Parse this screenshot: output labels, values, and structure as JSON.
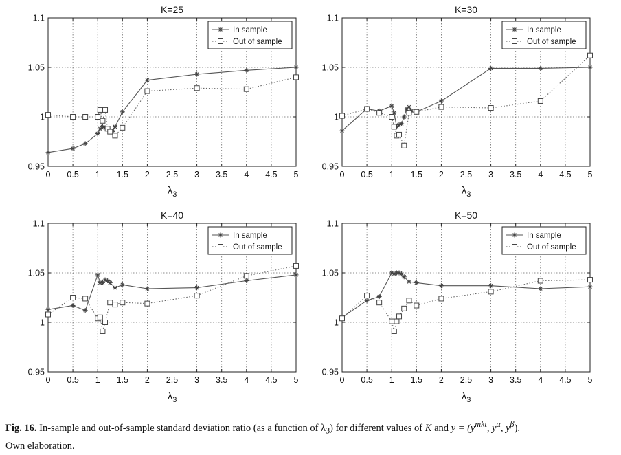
{
  "chart_data": [
    {
      "type": "line",
      "title": "K=25",
      "xlabel": "λ",
      "xlabel_sub": "3",
      "ylabel": "",
      "xlim": [
        0,
        5
      ],
      "ylim": [
        0.95,
        1.1
      ],
      "xticks": [
        "0",
        "0.5",
        "1",
        "1.5",
        "2",
        "2.5",
        "3",
        "3.5",
        "4",
        "4.5",
        "5"
      ],
      "yticks": [
        "0.95",
        "1",
        "1.05",
        "1.1"
      ],
      "grid": true,
      "legend": "top-right",
      "series": [
        {
          "name": "In sample",
          "marker": "star",
          "line": "solid",
          "x": [
            0,
            0.5,
            0.75,
            1.0,
            1.05,
            1.1,
            1.15,
            1.2,
            1.25,
            1.3,
            1.35,
            1.5,
            2,
            3,
            4,
            5
          ],
          "y": [
            0.964,
            0.968,
            0.973,
            0.983,
            0.988,
            0.99,
            0.989,
            0.988,
            0.986,
            0.985,
            0.99,
            1.005,
            1.037,
            1.043,
            1.047,
            1.05
          ]
        },
        {
          "name": "Out of sample",
          "marker": "square",
          "line": "dotted",
          "x": [
            0,
            0.5,
            0.75,
            1.0,
            1.05,
            1.1,
            1.15,
            1.2,
            1.25,
            1.35,
            1.5,
            2,
            3,
            4,
            5
          ],
          "y": [
            1.002,
            1.0,
            1.0,
            1.0,
            1.007,
            0.996,
            1.007,
            0.988,
            0.985,
            0.981,
            0.989,
            1.026,
            1.029,
            1.028,
            1.04
          ]
        }
      ]
    },
    {
      "type": "line",
      "title": "K=30",
      "xlabel": "λ",
      "xlabel_sub": "3",
      "ylabel": "",
      "xlim": [
        0,
        5
      ],
      "ylim": [
        0.95,
        1.1
      ],
      "xticks": [
        "0",
        "0.5",
        "1",
        "1.5",
        "2",
        "2.5",
        "3",
        "3.5",
        "4",
        "4.5",
        "5"
      ],
      "yticks": [
        "0.95",
        "1",
        "1.05",
        "1.1"
      ],
      "grid": true,
      "legend": "top-right",
      "series": [
        {
          "name": "In sample",
          "marker": "star",
          "line": "solid",
          "x": [
            0,
            0.5,
            0.75,
            1.0,
            1.05,
            1.1,
            1.15,
            1.2,
            1.25,
            1.3,
            1.35,
            1.4,
            1.5,
            2,
            3,
            4,
            5
          ],
          "y": [
            0.986,
            1.008,
            1.006,
            1.011,
            1.004,
            0.99,
            0.992,
            0.993,
            1.0,
            1.008,
            1.01,
            1.006,
            1.005,
            1.016,
            1.049,
            1.049,
            1.05
          ]
        },
        {
          "name": "Out of sample",
          "marker": "square",
          "line": "dotted",
          "x": [
            0,
            0.5,
            0.75,
            1.0,
            1.05,
            1.1,
            1.15,
            1.25,
            1.35,
            1.5,
            2,
            3,
            4,
            5
          ],
          "y": [
            1.001,
            1.008,
            1.004,
            1.0,
            0.99,
            0.981,
            0.982,
            0.971,
            1.004,
            1.005,
            1.01,
            1.009,
            1.016,
            1.062
          ]
        }
      ]
    },
    {
      "type": "line",
      "title": "K=40",
      "xlabel": "λ",
      "xlabel_sub": "3",
      "ylabel": "",
      "xlim": [
        0,
        5
      ],
      "ylim": [
        0.95,
        1.1
      ],
      "xticks": [
        "0",
        "0.5",
        "1",
        "1.5",
        "2",
        "2.5",
        "3",
        "3.5",
        "4",
        "4.5",
        "5"
      ],
      "yticks": [
        "0.95",
        "1",
        "1.05",
        "1.1"
      ],
      "grid": true,
      "legend": "top-right",
      "series": [
        {
          "name": "In sample",
          "marker": "star",
          "line": "solid",
          "x": [
            0,
            0.5,
            0.75,
            1.0,
            1.05,
            1.1,
            1.15,
            1.2,
            1.25,
            1.35,
            1.5,
            2,
            3,
            4,
            5
          ],
          "y": [
            1.013,
            1.017,
            1.012,
            1.048,
            1.04,
            1.04,
            1.043,
            1.042,
            1.04,
            1.035,
            1.038,
            1.034,
            1.035,
            1.042,
            1.048
          ]
        },
        {
          "name": "Out of sample",
          "marker": "square",
          "line": "dotted",
          "x": [
            0,
            0.5,
            0.75,
            1.0,
            1.05,
            1.1,
            1.15,
            1.25,
            1.35,
            1.5,
            2,
            3,
            4,
            5
          ],
          "y": [
            1.008,
            1.025,
            1.024,
            1.004,
            1.005,
            0.991,
            1.0,
            1.02,
            1.018,
            1.02,
            1.019,
            1.027,
            1.047,
            1.057
          ]
        }
      ]
    },
    {
      "type": "line",
      "title": "K=50",
      "xlabel": "λ",
      "xlabel_sub": "3",
      "ylabel": "",
      "xlim": [
        0,
        5
      ],
      "ylim": [
        0.95,
        1.1
      ],
      "xticks": [
        "0",
        "0.5",
        "1",
        "1.5",
        "2",
        "2.5",
        "3",
        "3.5",
        "4",
        "4.5",
        "5"
      ],
      "yticks": [
        "0.95",
        "1",
        "1.05",
        "1.1"
      ],
      "grid": true,
      "legend": "top-right",
      "series": [
        {
          "name": "In sample",
          "marker": "star",
          "line": "solid",
          "x": [
            0,
            0.5,
            0.75,
            1.0,
            1.05,
            1.1,
            1.15,
            1.2,
            1.25,
            1.35,
            1.5,
            2,
            3,
            4,
            5
          ],
          "y": [
            1.005,
            1.022,
            1.026,
            1.05,
            1.049,
            1.05,
            1.05,
            1.049,
            1.046,
            1.041,
            1.04,
            1.037,
            1.037,
            1.034,
            1.036
          ]
        },
        {
          "name": "Out of sample",
          "marker": "square",
          "line": "dotted",
          "x": [
            0,
            0.5,
            0.75,
            1.0,
            1.05,
            1.1,
            1.15,
            1.25,
            1.35,
            1.5,
            2,
            3,
            4,
            5
          ],
          "y": [
            1.004,
            1.027,
            1.02,
            1.001,
            0.991,
            1.001,
            1.006,
            1.014,
            1.022,
            1.017,
            1.024,
            1.031,
            1.042,
            1.043
          ]
        }
      ]
    }
  ],
  "caption": {
    "label": "Fig. 16.",
    "text_before": "In-sample and out-of-sample standard deviation ratio (as a function of λ",
    "lambda_sub": "3",
    "text_middle": ") for different values of ",
    "k_var": "K",
    "text_and": " and ",
    "y_expr": "y = (y",
    "sup_mkt": "mkt",
    "y_sep1": ", y",
    "sup_alpha": "α",
    "y_sep2": ", y",
    "sup_beta": "β",
    "y_close": ").",
    "line2": "Own elaboration."
  }
}
